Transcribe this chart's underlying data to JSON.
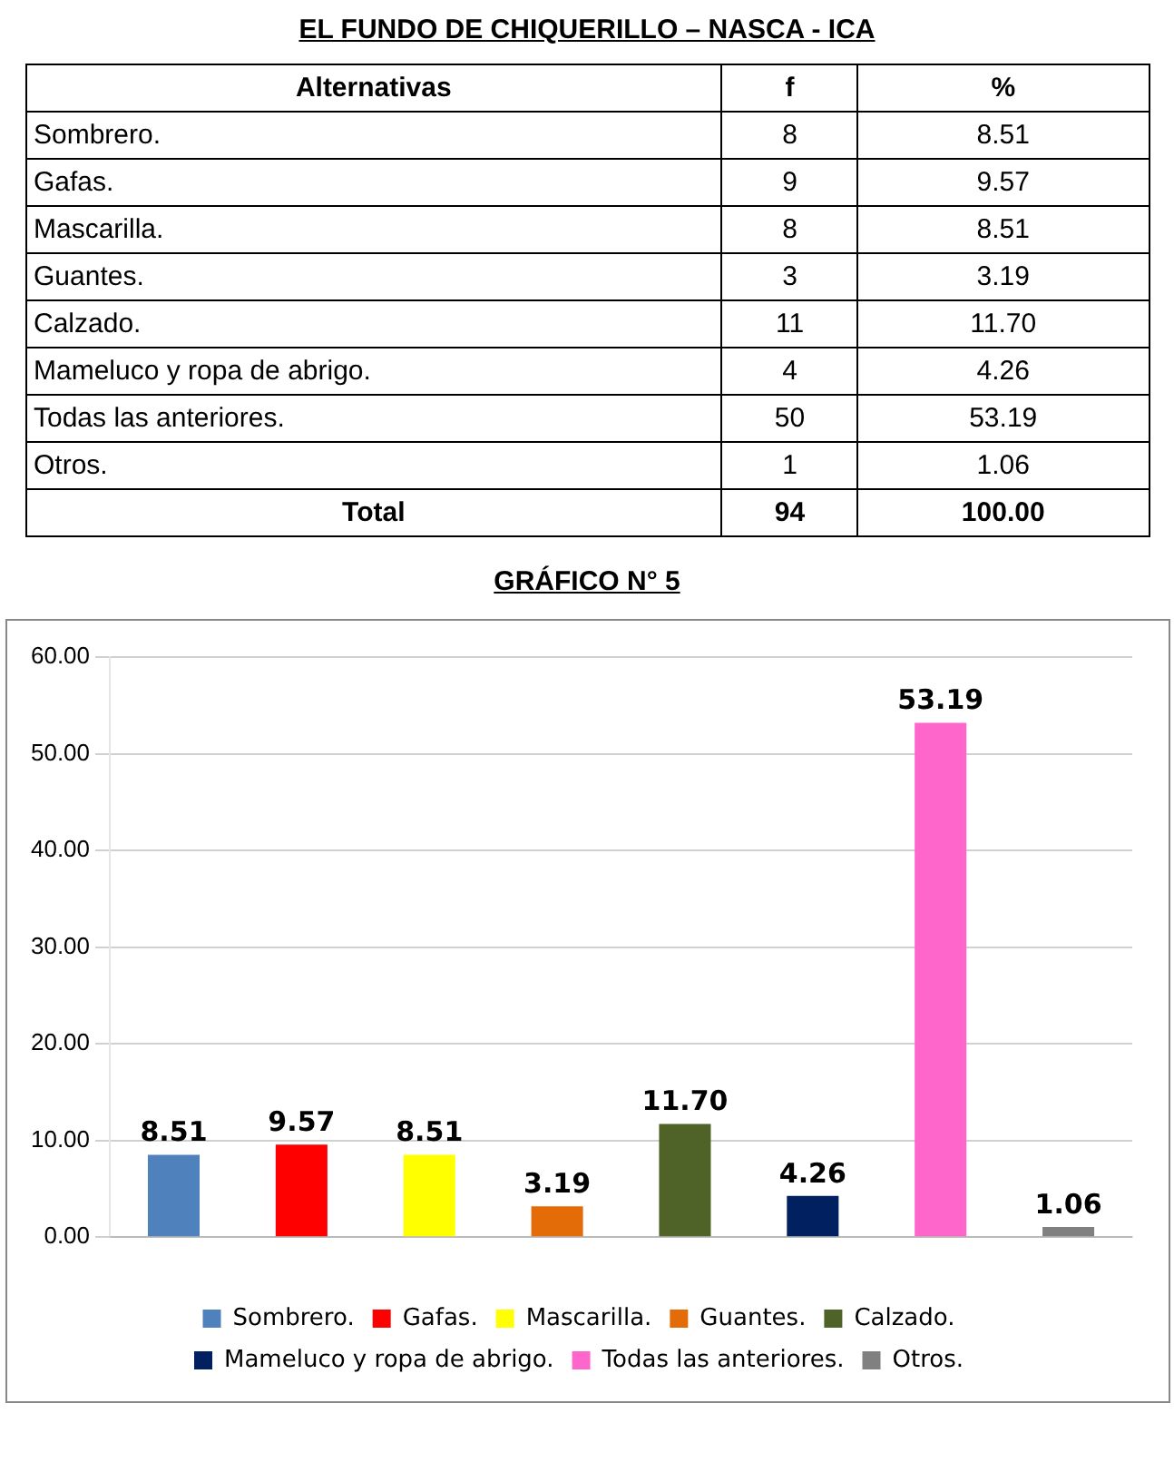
{
  "chart_data": {
    "type": "bar",
    "title": "GRÁFICO N° 5",
    "annotations": [
      "EL FUNDO DE CHIQUERILLO – NASCA - ICA",
      "Alternativas",
      "f",
      "%",
      "Sombrero.",
      "8",
      "8.51",
      "Gafas.",
      "9",
      "9.57",
      "Mascarilla.",
      "8",
      "8.51",
      "Guantes.",
      "3",
      "3.19",
      "Calzado.",
      "11",
      "11.70",
      "Mameluco y ropa de abrigo.",
      "4",
      "4.26",
      "Todas las anteriores.",
      "50",
      "53.19",
      "Otros.",
      "1",
      "1.06",
      "Total",
      "94",
      "100.00"
    ],
    "categories": [
      null,
      null,
      null,
      null,
      null,
      null,
      null,
      null
    ],
    "series": [
      {
        "name": "Sombrero.",
        "color": "#4f81bd",
        "values": [
          8.51,
          null,
          null,
          null,
          null,
          null,
          null,
          null
        ],
        "value_labels": [
          "8.51",
          null,
          null,
          null,
          null,
          null,
          null,
          null
        ]
      },
      {
        "name": "Gafas.",
        "color": "#ff0000",
        "values": [
          null,
          9.57,
          null,
          null,
          null,
          null,
          null,
          null
        ],
        "value_labels": [
          null,
          "9.57",
          null,
          null,
          null,
          null,
          null,
          null
        ]
      },
      {
        "name": "Mascarilla.",
        "color": "#ffff00",
        "values": [
          null,
          null,
          8.51,
          null,
          null,
          null,
          null,
          null
        ],
        "value_labels": [
          null,
          null,
          "8.51",
          null,
          null,
          null,
          null,
          null
        ]
      },
      {
        "name": "Guantes.",
        "color": "#e36c09",
        "values": [
          null,
          null,
          null,
          3.19,
          null,
          null,
          null,
          null
        ],
        "value_labels": [
          null,
          null,
          null,
          "3.19",
          null,
          null,
          null,
          null
        ]
      },
      {
        "name": "Calzado.",
        "color": "#4f6228",
        "values": [
          null,
          null,
          null,
          null,
          11.7,
          null,
          null,
          null
        ],
        "value_labels": [
          null,
          null,
          null,
          null,
          "11.70",
          null,
          null,
          null
        ]
      },
      {
        "name": "Mameluco y ropa de abrigo.",
        "color": "#002060",
        "values": [
          null,
          null,
          null,
          null,
          null,
          4.26,
          null,
          null
        ],
        "value_labels": [
          null,
          null,
          null,
          null,
          null,
          "4.26",
          null,
          null
        ]
      },
      {
        "name": "Todas las anteriores.",
        "color": "#ff66cc",
        "values": [
          null,
          null,
          null,
          null,
          null,
          null,
          53.19,
          null
        ],
        "value_labels": [
          null,
          null,
          null,
          null,
          null,
          null,
          "53.19",
          null
        ]
      },
      {
        "name": "Otros.",
        "color": "#808080",
        "values": [
          null,
          null,
          null,
          null,
          null,
          null,
          null,
          1.06
        ],
        "value_labels": [
          null,
          null,
          null,
          null,
          null,
          null,
          null,
          "1.06"
        ]
      }
    ],
    "ylim": [
      0,
      60
    ],
    "yticks": [
      {
        "value": 0,
        "label": "0.00"
      },
      {
        "value": 10,
        "label": "10.00"
      },
      {
        "value": 20,
        "label": "20.00"
      },
      {
        "value": 30,
        "label": "30.00"
      },
      {
        "value": 40,
        "label": "40.00"
      },
      {
        "value": 50,
        "label": "50.00"
      },
      {
        "value": 60,
        "label": "60.00"
      }
    ],
    "grid": "y",
    "legend": "bottom"
  }
}
